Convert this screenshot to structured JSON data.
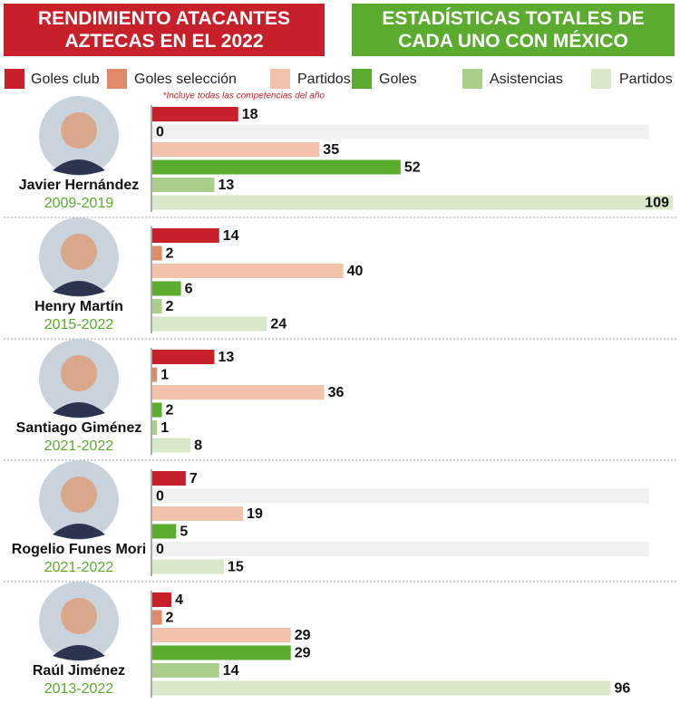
{
  "chart_data": {
    "type": "bar",
    "orientation": "horizontal",
    "title": "RENDIMIENTO ATACANTES AZTECAS EN EL 2022",
    "subtitle": "ESTADÍSTICAS TOTALES DE CADA UNO CON MÉXICO",
    "note": "*Incluye todas las competencias del año",
    "categories": [
      "Javier Hernández",
      "Henry Martín",
      "Santiago Giménez",
      "Rogelio Funes Mori",
      "Raúl Jiménez"
    ],
    "periods": [
      "2009-2019",
      "2015-2022",
      "2021-2022",
      "2021-2022",
      "2013-2022"
    ],
    "series": [
      {
        "name": "Goles club",
        "color": "#c8202a",
        "values": [
          18,
          14,
          13,
          7,
          4
        ]
      },
      {
        "name": "Goles selección",
        "color": "#e08968",
        "values": [
          0,
          2,
          1,
          0,
          2
        ]
      },
      {
        "name": "Partidos",
        "color": "#f2c2aa",
        "values": [
          35,
          40,
          36,
          19,
          29
        ]
      },
      {
        "name": "Goles",
        "color": "#5aab2e",
        "values": [
          52,
          6,
          2,
          5,
          29
        ]
      },
      {
        "name": "Asistencias",
        "color": "#a9cf8a",
        "values": [
          13,
          2,
          1,
          0,
          14
        ]
      },
      {
        "name": "Partidos",
        "color": "#d8e8c8",
        "values": [
          109,
          24,
          8,
          15,
          96
        ]
      }
    ]
  }
}
